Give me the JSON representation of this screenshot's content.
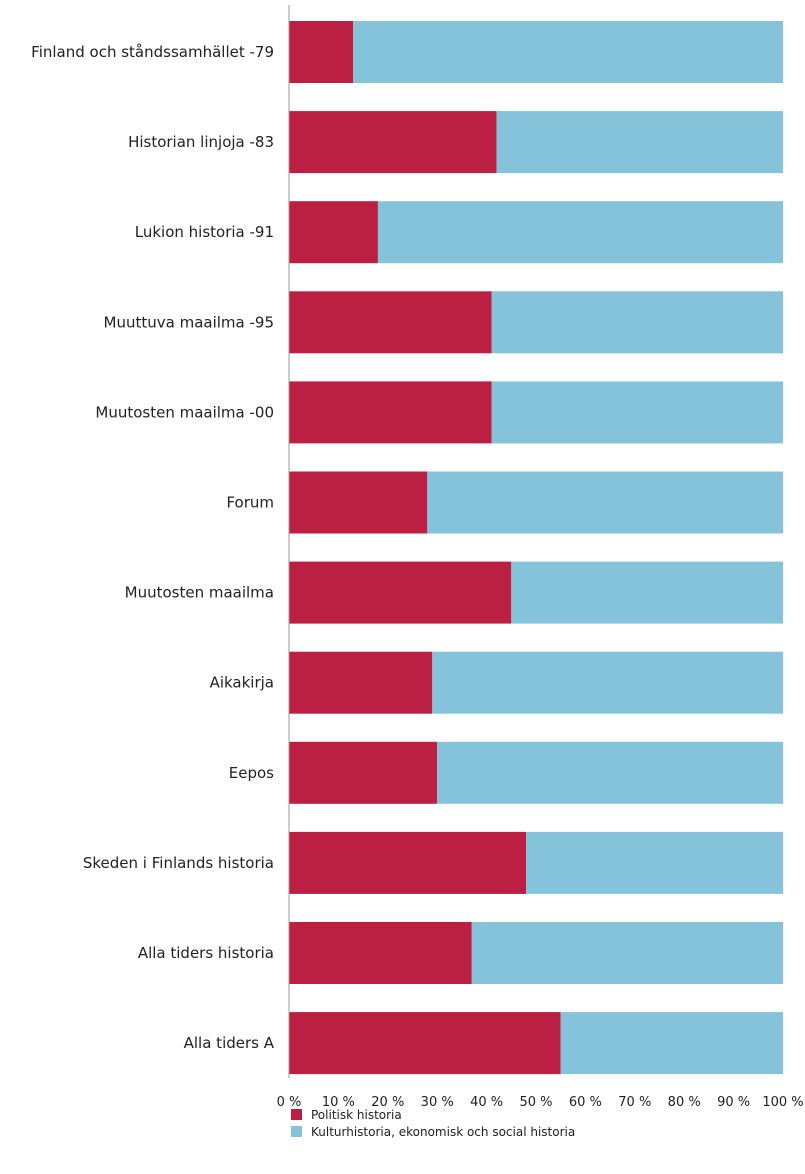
{
  "chart_data": {
    "type": "bar",
    "orientation": "horizontal",
    "stacked": "percent",
    "categories": [
      "Finland och ståndssamhället -79",
      "Historian linjoja -83",
      "Lukion historia -91",
      "Muuttuva maailma -95",
      "Muutosten maailma -00",
      "Forum",
      "Muutosten maailma",
      "Aikakirja",
      "Eepos",
      "Skeden i Finlands historia",
      "Alla tiders historia",
      "Alla tiders A"
    ],
    "series": [
      {
        "name": "Politisk historia",
        "color": "#bb1f42",
        "values": [
          13,
          42,
          18,
          41,
          41,
          28,
          45,
          29,
          30,
          48,
          37,
          55
        ]
      },
      {
        "name": "Kulturhistoria, ekonomisk och social historia",
        "color": "#85c3da",
        "values": [
          87,
          58,
          82,
          59,
          59,
          72,
          55,
          71,
          70,
          52,
          63,
          45
        ]
      }
    ],
    "xlim": [
      0,
      100
    ],
    "xticks": [
      "0 %",
      "10 %",
      "20 %",
      "30 %",
      "40 %",
      "50 %",
      "60 %",
      "70 %",
      "80 %",
      "90 %",
      "100 %"
    ],
    "grid": false,
    "legend_position": "bottom-left"
  }
}
